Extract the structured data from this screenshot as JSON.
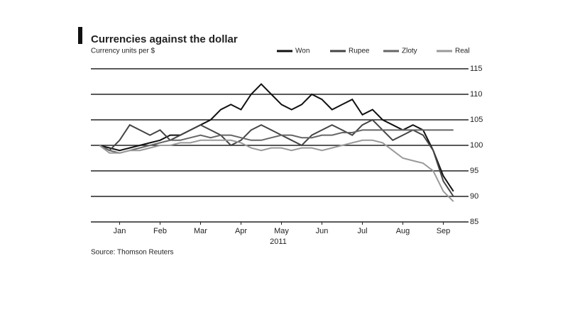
{
  "chart_data": {
    "type": "line",
    "title": "Currencies against the dollar",
    "subtitle": "Currency units per $",
    "source": "Source: Thomson Reuters",
    "year_label": "2011",
    "x": [
      1,
      1.25,
      1.5,
      1.75,
      2,
      2.25,
      2.5,
      2.75,
      3,
      3.25,
      3.5,
      3.75,
      4,
      4.25,
      4.5,
      4.75,
      5,
      5.25,
      5.5,
      5.75,
      6,
      6.25,
      6.5,
      6.75,
      7,
      7.25,
      7.5,
      7.75,
      8,
      8.25,
      8.5,
      8.75,
      9,
      9.25,
      9.5,
      9.75
    ],
    "xlim": [
      1,
      10
    ],
    "xticks": [
      {
        "value": 1.5,
        "label": "Jan"
      },
      {
        "value": 2.5,
        "label": "Feb"
      },
      {
        "value": 3.5,
        "label": "Mar"
      },
      {
        "value": 4.5,
        "label": "Apr"
      },
      {
        "value": 5.5,
        "label": "May"
      },
      {
        "value": 6.5,
        "label": "Jun"
      },
      {
        "value": 7.5,
        "label": "Jul"
      },
      {
        "value": 8.5,
        "label": "Aug"
      },
      {
        "value": 9.5,
        "label": "Sep"
      }
    ],
    "ylim": [
      85,
      115
    ],
    "yticks": [
      85,
      90,
      95,
      100,
      105,
      110,
      115
    ],
    "grid": true,
    "series": [
      {
        "name": "Won",
        "color": "#111111",
        "values": [
          100,
          99.5,
          99,
          99.5,
          100,
          100.5,
          101,
          102,
          102,
          103,
          104,
          105,
          107,
          108,
          107,
          110,
          112,
          110,
          108,
          107,
          108,
          110,
          109,
          107,
          108,
          109,
          106,
          107,
          105,
          104,
          103,
          104,
          103,
          99,
          94,
          91
        ]
      },
      {
        "name": "Rupee",
        "color": "#444444",
        "values": [
          100,
          99,
          101,
          104,
          103,
          102,
          103,
          101,
          102,
          103,
          104,
          103,
          102,
          100,
          101,
          103,
          104,
          103,
          102,
          101,
          100,
          102,
          103,
          104,
          103,
          102,
          104,
          105,
          103,
          101,
          102,
          103,
          102,
          99,
          93,
          90
        ]
      },
      {
        "name": "Zloty",
        "color": "#666666",
        "values": [
          100,
          99,
          98.5,
          99,
          99.5,
          100,
          100.5,
          101,
          101,
          101.5,
          102,
          101.5,
          102,
          102,
          101.5,
          101,
          101,
          101.5,
          102,
          102,
          101.5,
          101.5,
          102,
          102,
          102.5,
          102.5,
          103,
          103,
          103,
          103,
          103,
          103,
          103,
          103,
          103,
          103
        ]
      },
      {
        "name": "Real",
        "color": "#999999",
        "values": [
          100,
          98.5,
          98.5,
          99,
          99,
          99.5,
          100,
          100,
          100.5,
          100.5,
          101,
          101,
          101,
          101,
          100.5,
          99.5,
          99,
          99.5,
          99.5,
          99,
          99.5,
          99.5,
          99,
          99.5,
          100,
          100.5,
          101,
          101,
          100.5,
          99,
          97.5,
          97,
          96.5,
          95,
          91,
          89
        ]
      }
    ]
  }
}
